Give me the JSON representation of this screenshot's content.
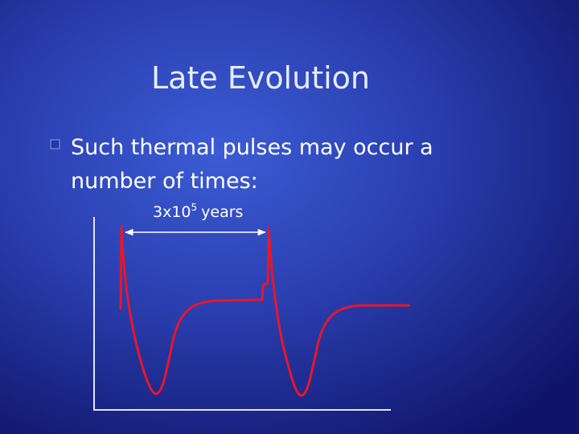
{
  "title": "Late Evolution",
  "bullet": {
    "line1": "Such thermal pulses may occur a",
    "line2": "number of times:"
  },
  "annotation": {
    "base": "3x10",
    "exponent": "5",
    "unit": "years"
  }
}
